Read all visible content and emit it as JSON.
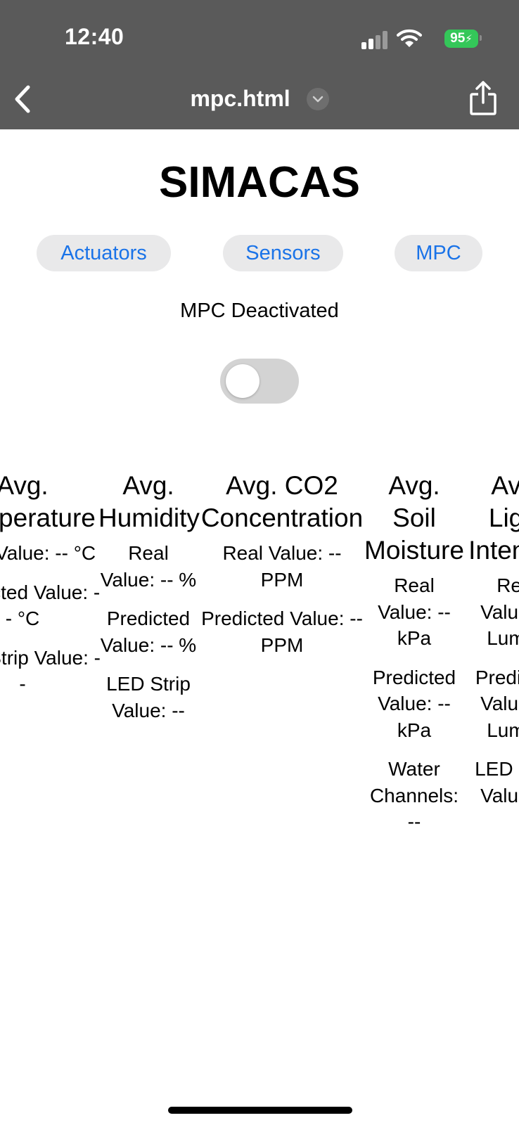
{
  "status_bar": {
    "time": "12:40",
    "battery": "95"
  },
  "browser": {
    "url_title": "mpc.html"
  },
  "page": {
    "title": "SIMACAS",
    "nav": [
      {
        "label": "Actuators"
      },
      {
        "label": "Sensors"
      },
      {
        "label": "MPC"
      }
    ],
    "mpc_status": "MPC Deactivated",
    "mpc_toggle_on": false
  },
  "cards": [
    {
      "title": "Avg. Temperature",
      "real": "Real Value: -- °C",
      "predicted": "Predicted Value: -- °C",
      "led": "LED Strip Value: --"
    },
    {
      "title": "Avg. Humidity",
      "real": "Real Value: -- %",
      "predicted": "Predicted Value: -- %",
      "led": "LED Strip Value: --"
    },
    {
      "title": "Avg. CO2 Concentration",
      "real": "Real Value: -- PPM",
      "predicted": "Predicted Value: -- PPM"
    },
    {
      "title": "Avg. Soil Moisture",
      "real": "Real Value: -- kPa",
      "predicted": "Predicted Value: -- kPa",
      "water": "Water Channels: --"
    },
    {
      "title": "Avg. Light Intensity",
      "real": "Real Value: -- Lumen",
      "predicted": "Predicted Value: -- Lumen",
      "led": "LED Strip Value: --"
    }
  ],
  "colors": {
    "browser_bar": "#5a5a5a",
    "link_blue": "#1a73e8",
    "battery_green": "#34c759",
    "toggle_off": "#d3d3d3"
  }
}
